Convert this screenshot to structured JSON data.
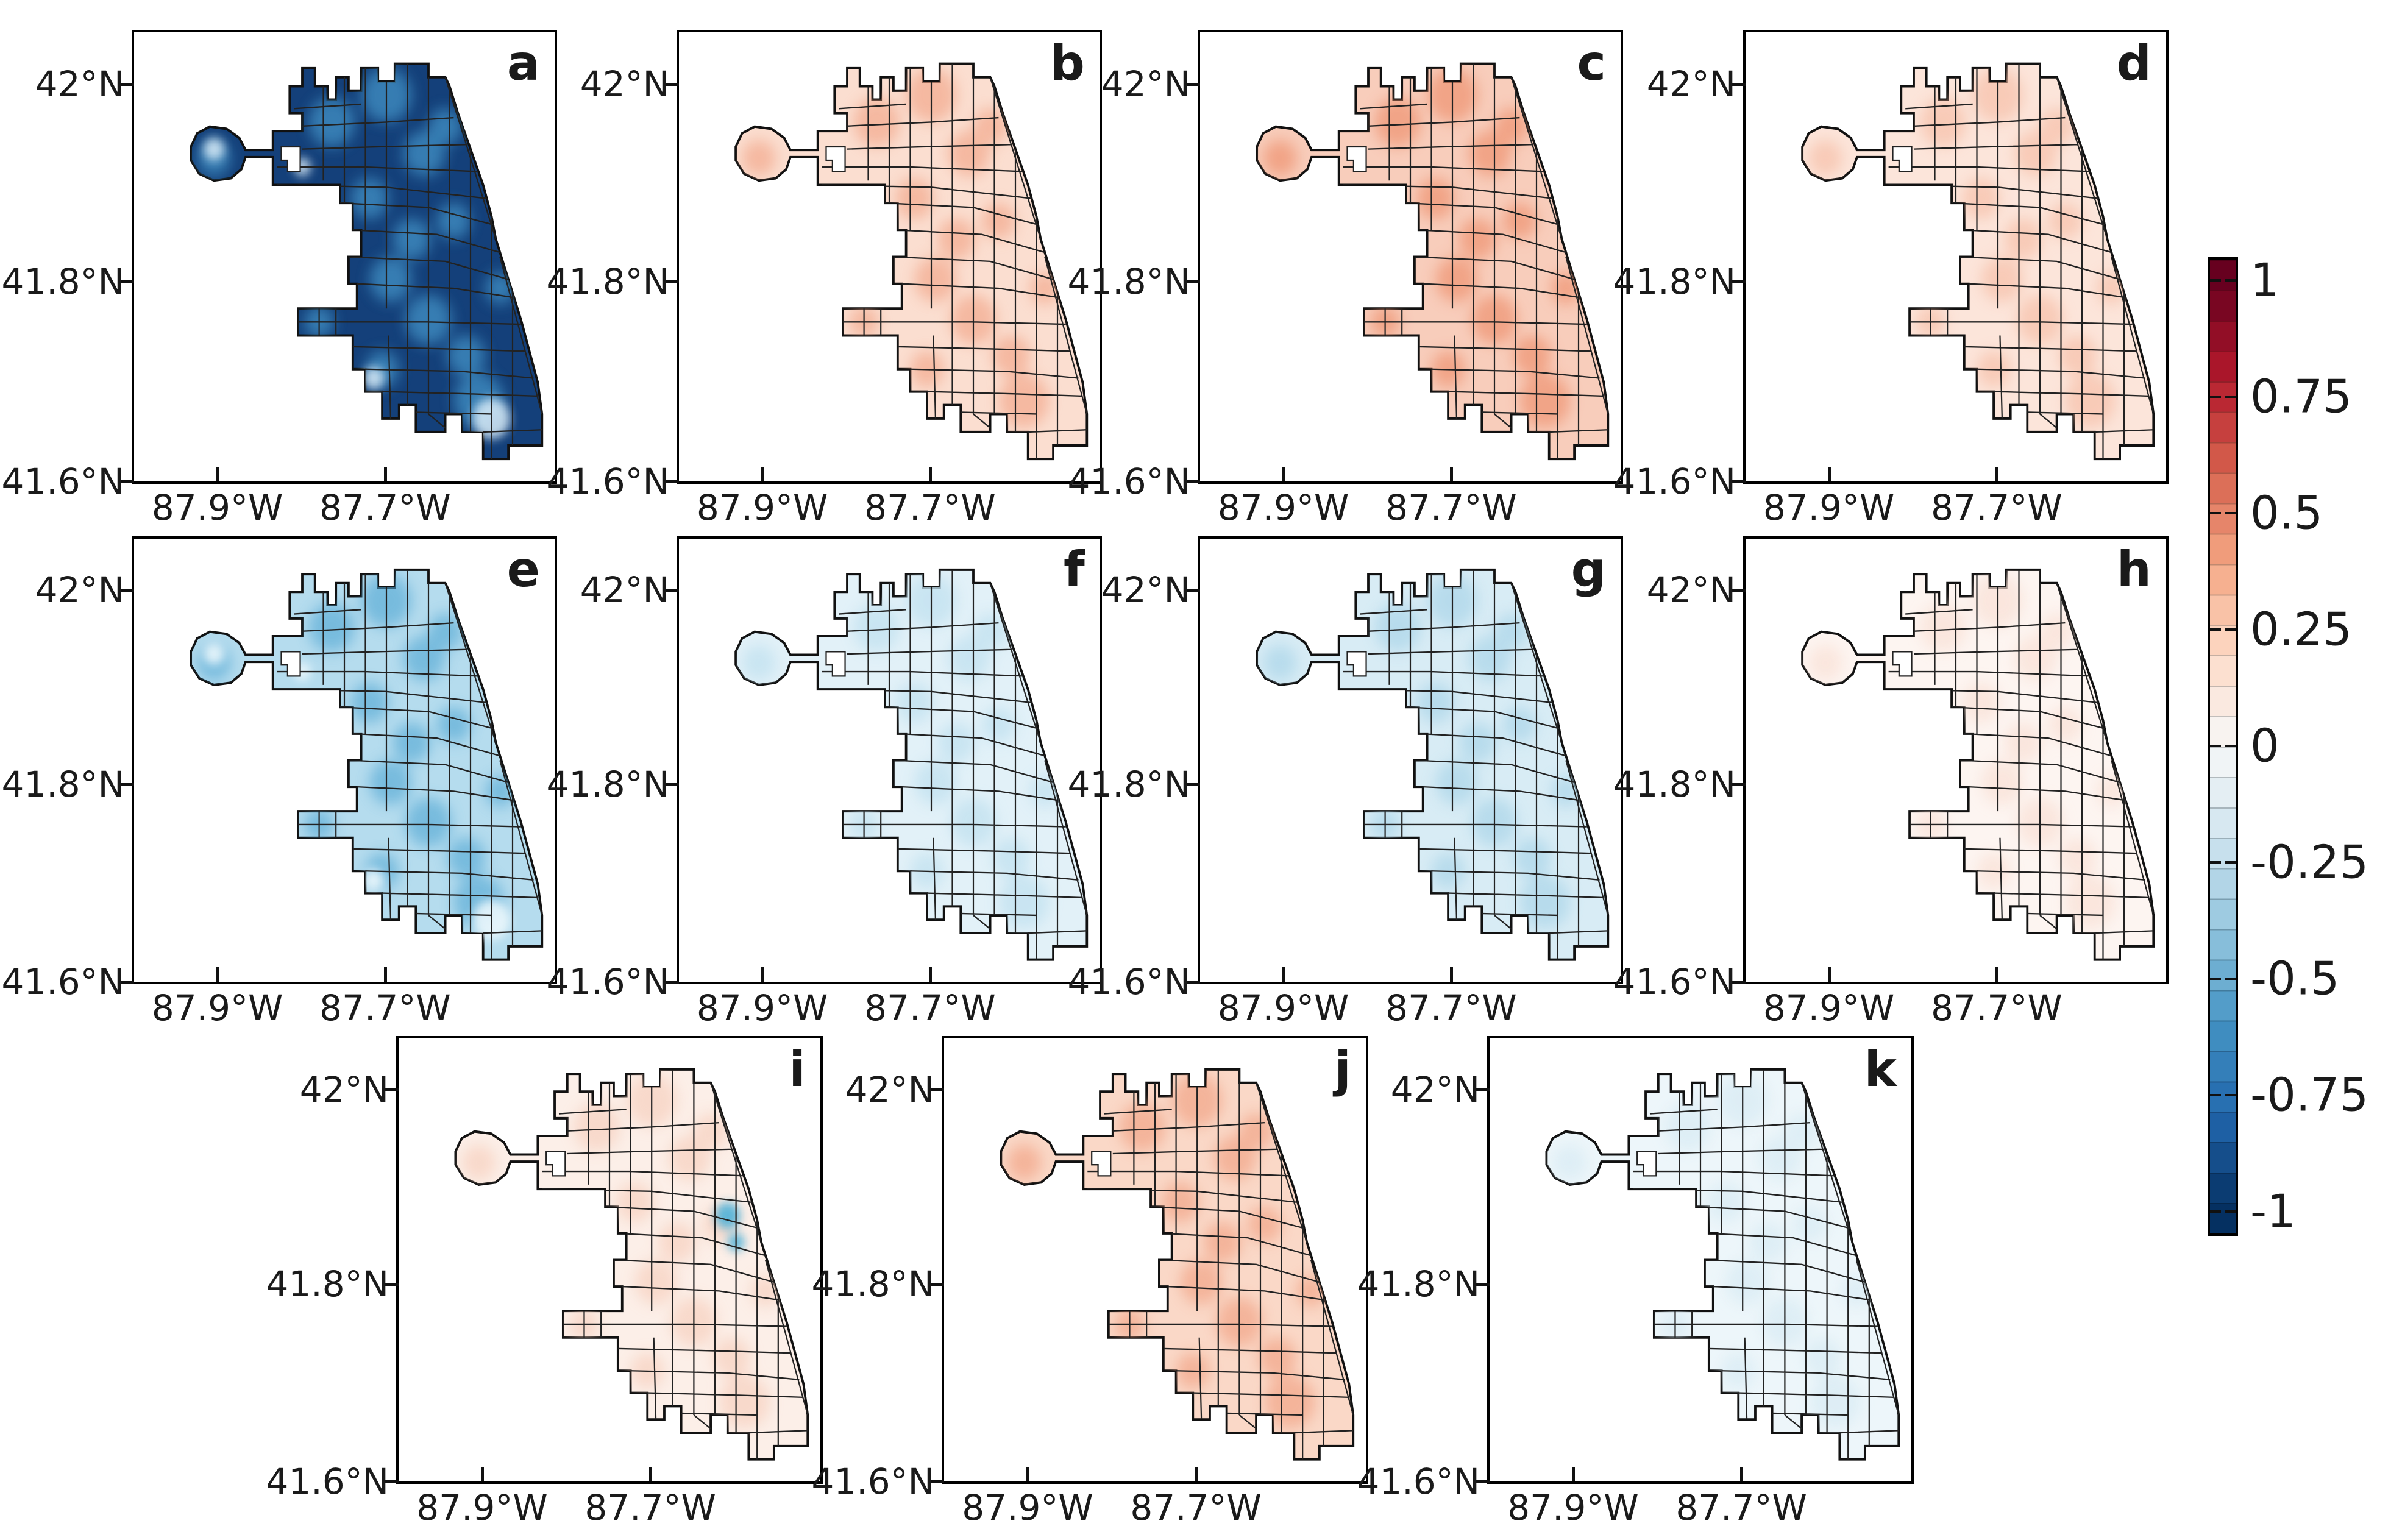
{
  "figure": {
    "panel_letters": [
      "a",
      "b",
      "c",
      "d",
      "e",
      "f",
      "g",
      "h",
      "i",
      "j",
      "k"
    ],
    "layout_note": "11 choropleth map panels of the same city boundary with community-area subdivisions, shared diverging red-blue colorbar"
  },
  "axes": {
    "y_ticks": [
      "42°N",
      "41.8°N",
      "41.6°N"
    ],
    "x_ticks": [
      "87.9°W",
      "87.7°W"
    ]
  },
  "colorbar": {
    "ticks": [
      "1",
      "0.75",
      "0.5",
      "0.25",
      "0",
      "-0.25",
      "-0.5",
      "-0.75",
      "-1"
    ],
    "tick_values": [
      1,
      0.75,
      0.5,
      0.25,
      0,
      -0.25,
      -0.5,
      -0.75,
      -1
    ],
    "colormap": "RdBu diverging, discrete steps, red = positive, blue = negative",
    "n_steps": 32,
    "gradient_anchors": [
      [
        0.0,
        "#67001f"
      ],
      [
        0.024,
        "#67001f"
      ],
      [
        0.119,
        "#b2182b"
      ],
      [
        0.214,
        "#d6604d"
      ],
      [
        0.309,
        "#f4a582"
      ],
      [
        0.404,
        "#fddbc7"
      ],
      [
        0.499,
        "#f7f7f7"
      ],
      [
        0.594,
        "#d1e5f0"
      ],
      [
        0.69,
        "#92c5de"
      ],
      [
        0.785,
        "#4393c3"
      ],
      [
        0.88,
        "#2166ac"
      ],
      [
        0.975,
        "#053061"
      ],
      [
        1.0,
        "#053061"
      ]
    ]
  },
  "panels": [
    {
      "letter": "a",
      "approx_value": -0.85,
      "fill_color": "#14407a",
      "accent_color": "#4292c6",
      "accent_opacity": "0.75",
      "accent2_color": "#d9ecf8",
      "accent2_opacity": "0.85"
    },
    {
      "letter": "b",
      "approx_value": 0.18,
      "fill_color": "#fbded0",
      "accent_color": "#f2a588",
      "accent_opacity": "0.65",
      "accent2_color": "#ffffff",
      "accent2_opacity": "0"
    },
    {
      "letter": "c",
      "approx_value": 0.25,
      "fill_color": "#f8cdbb",
      "accent_color": "#ee9371",
      "accent_opacity": "0.7",
      "accent2_color": "#ffffff",
      "accent2_opacity": "0"
    },
    {
      "letter": "d",
      "approx_value": 0.12,
      "fill_color": "#fce5da",
      "accent_color": "#f5b69c",
      "accent_opacity": "0.55",
      "accent2_color": "#ffffff",
      "accent2_opacity": "0"
    },
    {
      "letter": "e",
      "approx_value": -0.35,
      "fill_color": "#b5dcee",
      "accent_color": "#4fa6d3",
      "accent_opacity": "0.6",
      "accent2_color": "#f0f9fd",
      "accent2_opacity": "0.85"
    },
    {
      "letter": "f",
      "approx_value": -0.1,
      "fill_color": "#e2f1f8",
      "accent_color": "#c3e2f0",
      "accent_opacity": "0.8",
      "accent2_color": "#ffffff",
      "accent2_opacity": "0"
    },
    {
      "letter": "g",
      "approx_value": -0.15,
      "fill_color": "#d8ecf5",
      "accent_color": "#b0d8ea",
      "accent_opacity": "0.8",
      "accent2_color": "#ffffff",
      "accent2_opacity": "0"
    },
    {
      "letter": "h",
      "approx_value": 0.04,
      "fill_color": "#fdf5f1",
      "accent_color": "#f9e0d5",
      "accent_opacity": "0.7",
      "accent2_color": "#ffffff",
      "accent2_opacity": "0"
    },
    {
      "letter": "i",
      "approx_value": 0.08,
      "fill_color": "#fcefe8",
      "accent_color": "#f7d0bf",
      "accent_opacity": "0.7",
      "accent2_color": "#ffffff",
      "accent2_opacity": "0",
      "special_color": "#4db1d8",
      "special_opacity": "0.9"
    },
    {
      "letter": "j",
      "approx_value": 0.2,
      "fill_color": "#fad8c7",
      "accent_color": "#f1a183",
      "accent_opacity": "0.65",
      "accent2_color": "#ffffff",
      "accent2_opacity": "0"
    },
    {
      "letter": "k",
      "approx_value": -0.04,
      "fill_color": "#edf6fa",
      "accent_color": "#daecf4",
      "accent_opacity": "0.8",
      "accent2_color": "#ffffff",
      "accent2_opacity": "0"
    }
  ]
}
